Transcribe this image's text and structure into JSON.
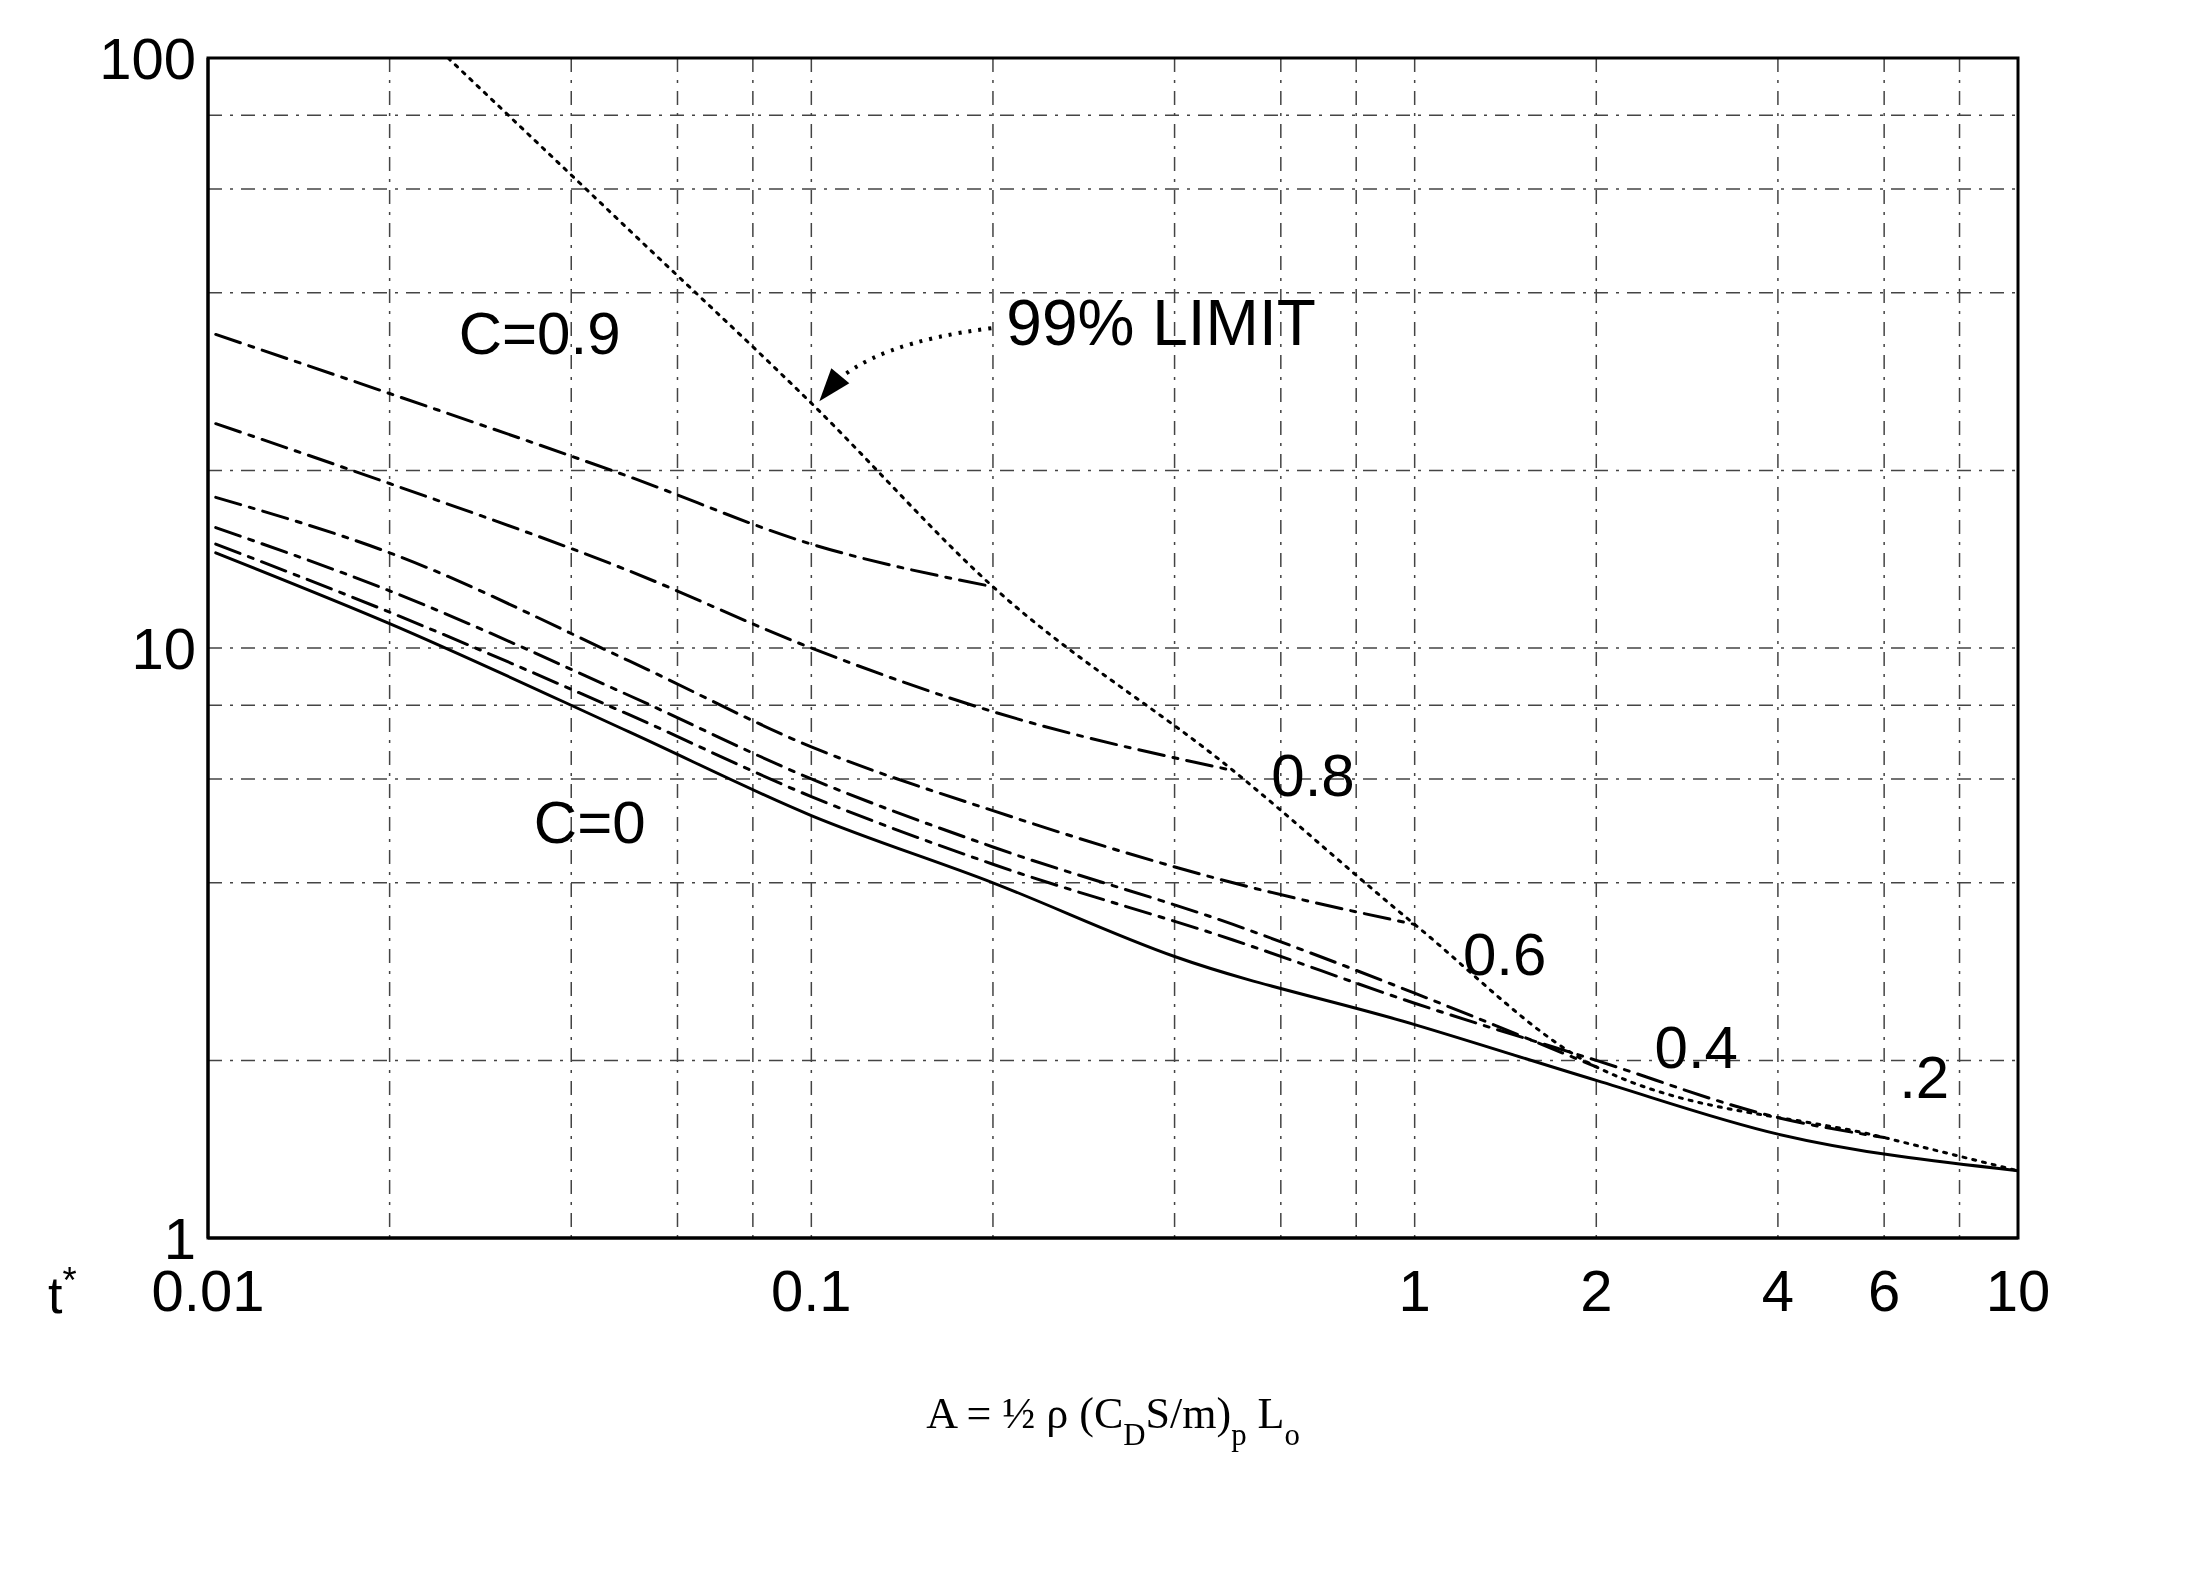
{
  "chart_data": {
    "type": "line",
    "xlabel": "A = ½ ρ (C$_{D}$S/m)$_{p}$ L$_{o}$",
    "ylabel": "t$^{*}$",
    "log": "xy",
    "grid": true,
    "xlim": [
      0.01,
      10
    ],
    "ylim": [
      1,
      100
    ],
    "xticks": [
      0.01,
      {
        "value": 0.02,
        "label": null
      },
      {
        "value": 0.04,
        "label": null
      },
      {
        "value": 0.06,
        "label": null
      },
      {
        "value": 0.08,
        "label": null
      },
      0.1,
      {
        "value": 0.2,
        "label": null
      },
      {
        "value": 0.4,
        "label": null
      },
      {
        "value": 0.6,
        "label": null
      },
      {
        "value": 0.8,
        "label": null
      },
      1,
      2,
      4,
      6,
      {
        "value": 8,
        "label": null
      },
      10
    ],
    "yticks": [
      1,
      {
        "value": 2,
        "label": null
      },
      {
        "value": 4,
        "label": null
      },
      {
        "value": 6,
        "label": null
      },
      {
        "value": 8,
        "label": null
      },
      10,
      {
        "value": 20,
        "label": null
      },
      {
        "value": 40,
        "label": null
      },
      {
        "value": 60,
        "label": null
      },
      {
        "value": 80,
        "label": null
      },
      100
    ],
    "series": [
      {
        "name": "C=0.9",
        "color": "#000000",
        "line_style": "dashed",
        "x": [
          0.0103,
          0.02,
          0.05,
          0.1,
          0.2
        ],
        "values": [
          34,
          27,
          19.5,
          15,
          12.7
        ]
      },
      {
        "name": "0.8",
        "color": "#000000",
        "line_style": "dashed",
        "x": [
          0.0103,
          0.02,
          0.05,
          0.1,
          0.2,
          0.5
        ],
        "values": [
          24,
          19,
          13.5,
          10,
          7.8,
          6.2
        ]
      },
      {
        "name": "0.6",
        "color": "#000000",
        "line_style": "dashed",
        "x": [
          0.0103,
          0.02,
          0.05,
          0.1,
          0.2,
          0.5,
          1
        ],
        "values": [
          18,
          14.5,
          9.5,
          6.8,
          5.3,
          4.0,
          3.4
        ]
      },
      {
        "name": "0.4",
        "color": "#000000",
        "line_style": "dashed",
        "x": [
          0.0103,
          0.02,
          0.05,
          0.1,
          0.2,
          0.5,
          1,
          2
        ],
        "values": [
          16,
          12.5,
          8.3,
          6.0,
          4.6,
          3.4,
          2.6,
          1.95
        ]
      },
      {
        "name": ".2",
        "color": "#000000",
        "line_style": "dashed",
        "x": [
          0.0103,
          0.02,
          0.05,
          0.1,
          0.2,
          0.5,
          1,
          2,
          4,
          6
        ],
        "values": [
          15,
          11.5,
          7.7,
          5.6,
          4.3,
          3.2,
          2.5,
          2.0,
          1.6,
          1.48
        ]
      },
      {
        "name": "C=0",
        "color": "#000000",
        "line_style": "solid",
        "x": [
          0.0103,
          0.02,
          0.05,
          0.1,
          0.2,
          0.4,
          1,
          2,
          4,
          10
        ],
        "values": [
          14.5,
          11,
          7.2,
          5.2,
          4.0,
          3.0,
          2.3,
          1.85,
          1.5,
          1.3
        ]
      },
      {
        "name": "99% LIMIT",
        "color": "#000000",
        "line_style": "dotted",
        "x": [
          0.025,
          0.05,
          0.1,
          0.2,
          0.5,
          1,
          2,
          6,
          10
        ],
        "values": [
          100,
          51,
          26,
          12.7,
          6.2,
          3.4,
          1.95,
          1.48,
          1.3
        ]
      }
    ]
  }
}
